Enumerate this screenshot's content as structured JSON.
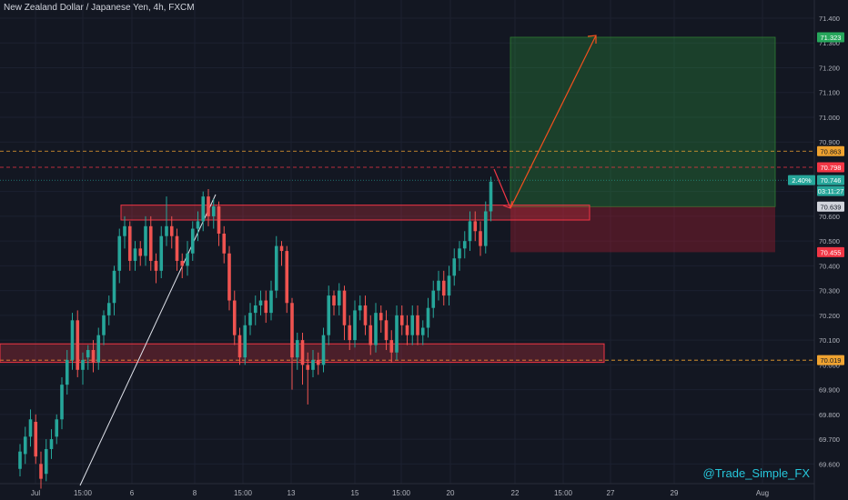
{
  "title": "New Zealand Dollar / Japanese Yen, 4h, FXCM",
  "watermark": "@Trade_Simple_FX",
  "chart_data": {
    "type": "candlestick",
    "y_ticks": [
      "71.400",
      "71.300",
      "71.200",
      "71.100",
      "71.000",
      "70.900",
      "70.700",
      "70.600",
      "70.500",
      "70.400",
      "70.300",
      "70.200",
      "70.100",
      "70.000",
      "69.900",
      "69.800",
      "69.700",
      "69.600"
    ],
    "x_ticks": [
      "Jul",
      "15:00",
      "6",
      "8",
      "15:00",
      "13",
      "15",
      "15:00",
      "20",
      "22",
      "15:00",
      "27",
      "29",
      "Aug"
    ],
    "price_tags": [
      {
        "label": "71.323",
        "value": 71.323,
        "color": "#26a65b",
        "text_color": "#ffffff"
      },
      {
        "label": "70.863",
        "value": 70.863,
        "color": "#f0a330",
        "text_color": "#131722"
      },
      {
        "label": "70.798",
        "value": 70.798,
        "color": "#f23645",
        "text_color": "#ffffff"
      },
      {
        "label": "2.40%",
        "value": 70.746,
        "color": "#26a69a",
        "text_color": "#ffffff"
      },
      {
        "label": "70.746",
        "value": 70.746,
        "color": "#26a69a",
        "text_color": "#ffffff"
      },
      {
        "label": "03:11:27",
        "value": 70.71,
        "color": "#26a69a",
        "text_color": "#ffffff"
      },
      {
        "label": "70.639",
        "value": 70.639,
        "color": "#d1d4dc",
        "text_color": "#131722"
      },
      {
        "label": "70.455",
        "value": 70.455,
        "color": "#f23645",
        "text_color": "#ffffff"
      },
      {
        "label": "70.019",
        "value": 70.019,
        "color": "#f0a330",
        "text_color": "#131722"
      }
    ],
    "candles": [
      [
        69.58,
        69.65,
        69.55,
        69.68
      ],
      [
        69.64,
        69.71,
        69.6,
        69.75
      ],
      [
        69.71,
        69.78,
        69.67,
        69.82
      ],
      [
        69.77,
        69.63,
        69.6,
        69.8
      ],
      [
        69.6,
        69.54,
        69.5,
        69.65
      ],
      [
        69.56,
        69.66,
        69.53,
        69.7
      ],
      [
        69.66,
        69.7,
        69.62,
        69.74
      ],
      [
        69.71,
        69.78,
        69.68,
        69.8
      ],
      [
        69.78,
        69.92,
        69.74,
        69.95
      ],
      [
        69.92,
        70.02,
        69.88,
        70.06
      ],
      [
        70.02,
        70.18,
        69.98,
        70.21
      ],
      [
        70.18,
        69.98,
        69.95,
        70.22
      ],
      [
        69.98,
        70.02,
        69.92,
        70.05
      ],
      [
        70.03,
        70.06,
        69.98,
        70.08
      ],
      [
        70.06,
        70.01,
        69.97,
        70.1
      ],
      [
        70.01,
        70.12,
        69.98,
        70.15
      ],
      [
        70.12,
        70.2,
        70.08,
        70.22
      ],
      [
        70.2,
        70.25,
        70.16,
        70.28
      ],
      [
        70.25,
        70.38,
        70.2,
        70.4
      ],
      [
        70.38,
        70.52,
        70.33,
        70.55
      ],
      [
        70.52,
        70.56,
        70.47,
        70.6
      ],
      [
        70.56,
        70.42,
        70.38,
        70.58
      ],
      [
        70.42,
        70.47,
        70.38,
        70.5
      ],
      [
        70.47,
        70.44,
        70.4,
        70.5
      ],
      [
        70.44,
        70.56,
        70.4,
        70.6
      ],
      [
        70.56,
        70.42,
        70.38,
        70.6
      ],
      [
        70.42,
        70.38,
        70.33,
        70.45
      ],
      [
        70.38,
        70.52,
        70.35,
        70.56
      ],
      [
        70.52,
        70.56,
        70.48,
        70.68
      ],
      [
        70.56,
        70.52,
        70.47,
        70.6
      ],
      [
        70.52,
        70.42,
        70.38,
        70.55
      ],
      [
        70.42,
        70.4,
        70.35,
        70.45
      ],
      [
        70.4,
        70.45,
        70.36,
        70.5
      ],
      [
        70.45,
        70.55,
        70.42,
        70.58
      ],
      [
        70.55,
        70.58,
        70.5,
        70.62
      ],
      [
        70.58,
        70.68,
        70.54,
        70.7
      ],
      [
        70.68,
        70.6,
        70.56,
        70.71
      ],
      [
        70.6,
        70.64,
        70.55,
        70.67
      ],
      [
        70.64,
        70.53,
        70.48,
        70.66
      ],
      [
        70.53,
        70.45,
        70.41,
        70.56
      ],
      [
        70.45,
        70.26,
        70.22,
        70.48
      ],
      [
        70.26,
        70.12,
        70.08,
        70.3
      ],
      [
        70.12,
        70.03,
        70.0,
        70.15
      ],
      [
        70.03,
        70.16,
        70.0,
        70.2
      ],
      [
        70.16,
        70.21,
        70.12,
        70.25
      ],
      [
        70.21,
        70.24,
        70.16,
        70.28
      ],
      [
        70.24,
        70.26,
        70.2,
        70.3
      ],
      [
        70.26,
        70.21,
        70.17,
        70.3
      ],
      [
        70.21,
        70.3,
        70.18,
        70.34
      ],
      [
        70.3,
        70.48,
        70.27,
        70.52
      ],
      [
        70.48,
        70.46,
        70.4,
        70.5
      ],
      [
        70.46,
        70.25,
        70.21,
        70.48
      ],
      [
        70.25,
        70.03,
        69.9,
        70.27
      ],
      [
        70.03,
        70.1,
        69.98,
        70.13
      ],
      [
        70.1,
        70.0,
        69.92,
        70.13
      ],
      [
        70.0,
        69.98,
        69.84,
        70.05
      ],
      [
        69.98,
        70.02,
        69.95,
        70.06
      ],
      [
        70.02,
        70.0,
        69.96,
        70.05
      ],
      [
        70.0,
        70.12,
        69.97,
        70.15
      ],
      [
        70.12,
        70.28,
        70.08,
        70.32
      ],
      [
        70.28,
        70.24,
        70.2,
        70.3
      ],
      [
        70.24,
        70.3,
        70.2,
        70.33
      ],
      [
        70.3,
        70.16,
        70.1,
        70.32
      ],
      [
        70.16,
        70.1,
        70.06,
        70.2
      ],
      [
        70.1,
        70.22,
        70.07,
        70.26
      ],
      [
        70.22,
        70.24,
        70.18,
        70.28
      ],
      [
        70.24,
        70.16,
        70.12,
        70.28
      ],
      [
        70.16,
        70.08,
        70.04,
        70.2
      ],
      [
        70.08,
        70.21,
        70.05,
        70.25
      ],
      [
        70.21,
        70.18,
        70.13,
        70.24
      ],
      [
        70.18,
        70.1,
        70.06,
        70.22
      ],
      [
        70.1,
        70.05,
        70.01,
        70.14
      ],
      [
        70.05,
        70.2,
        70.02,
        70.24
      ],
      [
        70.2,
        70.16,
        70.12,
        70.24
      ],
      [
        70.16,
        70.12,
        70.08,
        70.2
      ],
      [
        70.12,
        70.2,
        70.08,
        70.24
      ],
      [
        70.2,
        70.12,
        70.08,
        70.24
      ],
      [
        70.12,
        70.15,
        70.08,
        70.18
      ],
      [
        70.15,
        70.23,
        70.11,
        70.27
      ],
      [
        70.23,
        70.3,
        70.19,
        70.34
      ],
      [
        70.3,
        70.34,
        70.26,
        70.38
      ],
      [
        70.34,
        70.28,
        70.24,
        70.38
      ],
      [
        70.28,
        70.36,
        70.24,
        70.4
      ],
      [
        70.36,
        70.43,
        70.32,
        70.47
      ],
      [
        70.43,
        70.47,
        70.38,
        70.5
      ],
      [
        70.47,
        70.5,
        70.43,
        70.54
      ],
      [
        70.5,
        70.58,
        70.46,
        70.62
      ],
      [
        70.58,
        70.54,
        70.5,
        70.62
      ],
      [
        70.54,
        70.48,
        70.44,
        70.58
      ],
      [
        70.48,
        70.62,
        70.45,
        70.66
      ],
      [
        70.62,
        70.74,
        70.58,
        70.76
      ]
    ]
  }
}
